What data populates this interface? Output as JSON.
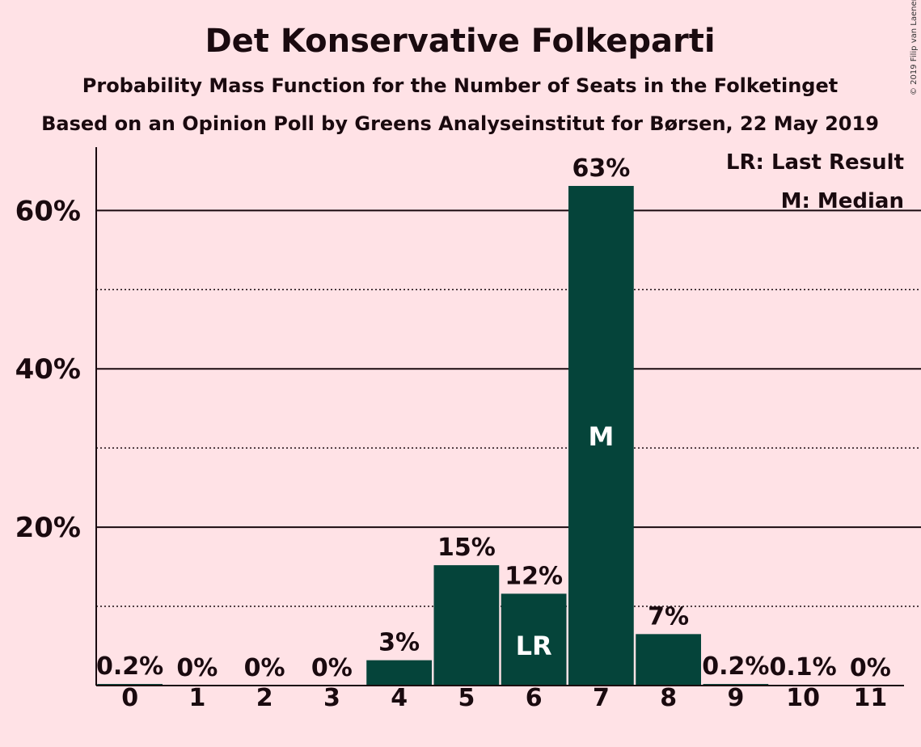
{
  "chart_data": {
    "type": "bar",
    "title": "Det Konservative Folkeparti",
    "subtitle": "Probability Mass Function for the Number of Seats in the Folketinget",
    "subtitle2": "Based on an Opinion Poll by Greens Analyseinstitut for Børsen, 22 May 2019",
    "categories": [
      "0",
      "1",
      "2",
      "3",
      "4",
      "5",
      "6",
      "7",
      "8",
      "9",
      "10",
      "11"
    ],
    "values": [
      0.2,
      0,
      0,
      0,
      3.2,
      15.2,
      11.6,
      63.1,
      6.5,
      0.2,
      0.1,
      0
    ],
    "value_labels": [
      "0.2%",
      "0%",
      "0%",
      "0%",
      "3%",
      "15%",
      "12%",
      "63%",
      "7%",
      "0.2%",
      "0.1%",
      "0%"
    ],
    "bar_markers": {
      "6": "LR",
      "7": "M"
    },
    "ylim": [
      0,
      68
    ],
    "yticks_major": [
      20,
      40,
      60
    ],
    "ytick_labels": [
      "20%",
      "40%",
      "60%"
    ],
    "yticks_minor": [
      10,
      30,
      50
    ],
    "legend": {
      "position": "top-right",
      "entries": [
        "LR: Last Result",
        "M: Median"
      ]
    },
    "colors": {
      "bar": "#05443a",
      "background": "#ffe2e6",
      "text": "#1a0a0f"
    },
    "copyright": "© 2019 Filip van Laenen"
  }
}
